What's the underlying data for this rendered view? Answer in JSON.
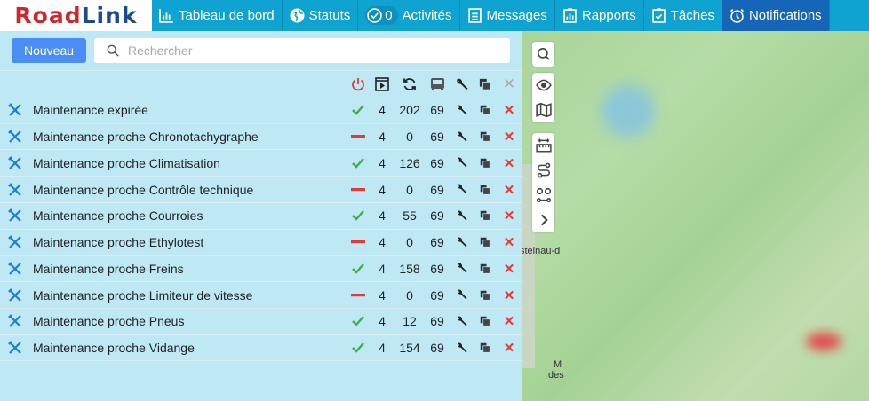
{
  "logo": {
    "part1": "Road",
    "part2": "Link"
  },
  "nav": [
    {
      "label": "Tableau de bord",
      "icon": "bar-chart-icon"
    },
    {
      "label": "Statuts",
      "icon": "globe-icon"
    },
    {
      "label": "Activités",
      "icon": "check-circle-icon",
      "count": "0"
    },
    {
      "label": "Messages",
      "icon": "document-icon"
    },
    {
      "label": "Rapports",
      "icon": "report-icon"
    },
    {
      "label": "Tâches",
      "icon": "clipboard-check-icon"
    },
    {
      "label": "Notifications",
      "icon": "alarm-clock-icon",
      "active": true
    }
  ],
  "toolbar": {
    "new_label": "Nouveau",
    "search_placeholder": "Rechercher"
  },
  "columns": [
    "power-icon",
    "play-window-icon",
    "refresh-icon",
    "bus-icon",
    "wrench-icon",
    "copy-icon",
    "close-icon"
  ],
  "colors": {
    "ok": "#3fae49",
    "off": "#e53935",
    "delete": "#e53935",
    "nav": "#0fa3d1",
    "nav_active": "#1565b8",
    "button": "#4a8ef5"
  },
  "rows": [
    {
      "name": "Maintenance expirée",
      "status": "ok",
      "a": "4",
      "b": "202",
      "c": "69"
    },
    {
      "name": "Maintenance proche Chronotachygraphe",
      "status": "off",
      "a": "4",
      "b": "0",
      "c": "69"
    },
    {
      "name": "Maintenance proche Climatisation",
      "status": "ok",
      "a": "4",
      "b": "126",
      "c": "69"
    },
    {
      "name": "Maintenance proche Contrôle technique",
      "status": "off",
      "a": "4",
      "b": "0",
      "c": "69"
    },
    {
      "name": "Maintenance proche Courroies",
      "status": "ok",
      "a": "4",
      "b": "55",
      "c": "69"
    },
    {
      "name": "Maintenance proche Ethylotest",
      "status": "off",
      "a": "4",
      "b": "0",
      "c": "69"
    },
    {
      "name": "Maintenance proche Freins",
      "status": "ok",
      "a": "4",
      "b": "158",
      "c": "69"
    },
    {
      "name": "Maintenance proche Limiteur de vitesse",
      "status": "off",
      "a": "4",
      "b": "0",
      "c": "69"
    },
    {
      "name": "Maintenance proche Pneus",
      "status": "ok",
      "a": "4",
      "b": "12",
      "c": "69"
    },
    {
      "name": "Maintenance proche Vidange",
      "status": "ok",
      "a": "4",
      "b": "154",
      "c": "69"
    }
  ],
  "map": {
    "labels": [
      "stelnau-d",
      "M",
      "des"
    ]
  }
}
